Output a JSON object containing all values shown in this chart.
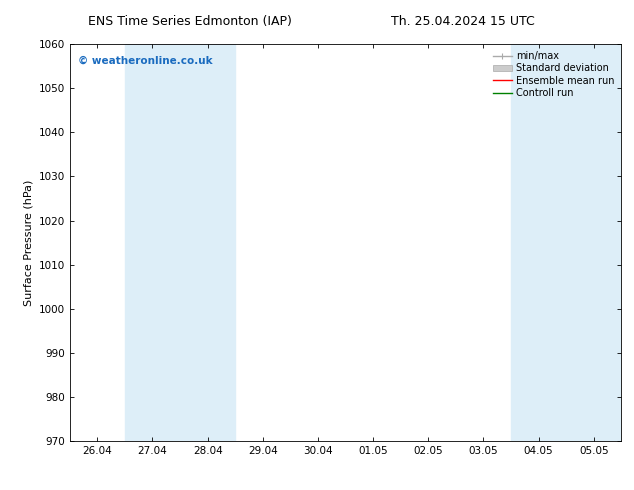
{
  "title_left": "ENS Time Series Edmonton (IAP)",
  "title_right": "Th. 25.04.2024 15 UTC",
  "ylabel": "Surface Pressure (hPa)",
  "ylim": [
    970,
    1060
  ],
  "yticks": [
    970,
    980,
    990,
    1000,
    1010,
    1020,
    1030,
    1040,
    1050,
    1060
  ],
  "x_labels": [
    "26.04",
    "27.04",
    "28.04",
    "29.04",
    "30.04",
    "01.05",
    "02.05",
    "03.05",
    "04.05",
    "05.05"
  ],
  "x_values": [
    0,
    1,
    2,
    3,
    4,
    5,
    6,
    7,
    8,
    9
  ],
  "xlim": [
    -0.5,
    9.5
  ],
  "shaded_bands": [
    {
      "x_start": 0.5,
      "x_end": 1.5,
      "color": "#ddeef8"
    },
    {
      "x_start": 1.5,
      "x_end": 2.5,
      "color": "#ddeef8"
    },
    {
      "x_start": 7.5,
      "x_end": 8.5,
      "color": "#ddeef8"
    },
    {
      "x_start": 8.5,
      "x_end": 9.5,
      "color": "#ddeef8"
    }
  ],
  "watermark": "© weatheronline.co.uk",
  "watermark_color": "#1a6bbf",
  "legend_items": [
    {
      "label": "min/max",
      "color": "#aaaaaa",
      "style": "errorbar"
    },
    {
      "label": "Standard deviation",
      "color": "#cccccc",
      "style": "band"
    },
    {
      "label": "Ensemble mean run",
      "color": "#ff0000",
      "style": "line"
    },
    {
      "label": "Controll run",
      "color": "#008000",
      "style": "line"
    }
  ],
  "bg_color": "#ffffff",
  "plot_bg_color": "#ffffff",
  "tick_label_fontsize": 7.5,
  "axis_label_fontsize": 8,
  "title_fontsize": 9,
  "legend_fontsize": 7
}
